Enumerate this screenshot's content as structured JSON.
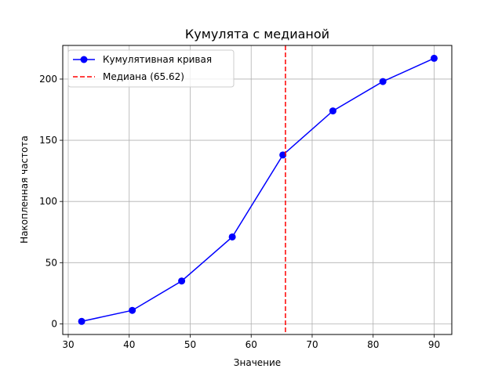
{
  "chart_data": {
    "type": "line",
    "title": "Кумулята с медианой",
    "xlabel": "Значение",
    "ylabel": "Накопленная частота",
    "xlim": [
      29.1,
      92.9
    ],
    "ylim": [
      -8.7,
      227.5
    ],
    "xticks": [
      30,
      40,
      50,
      60,
      70,
      80,
      90
    ],
    "yticks": [
      0,
      50,
      100,
      150,
      200
    ],
    "grid": true,
    "legend_position": "top-left",
    "series": [
      {
        "name": "Кумулятивная кривая",
        "color": "#0000ff",
        "marker": "circle",
        "x": [
          32.2,
          40.5,
          48.6,
          56.9,
          65.2,
          73.4,
          81.6,
          90.0
        ],
        "y": [
          2,
          11,
          35,
          71,
          138,
          174,
          198,
          217
        ]
      }
    ],
    "reference_lines": [
      {
        "name": "Медиана (65.62)",
        "orientation": "vertical",
        "x": 65.62,
        "color": "#ff0000",
        "style": "dashed"
      }
    ]
  }
}
